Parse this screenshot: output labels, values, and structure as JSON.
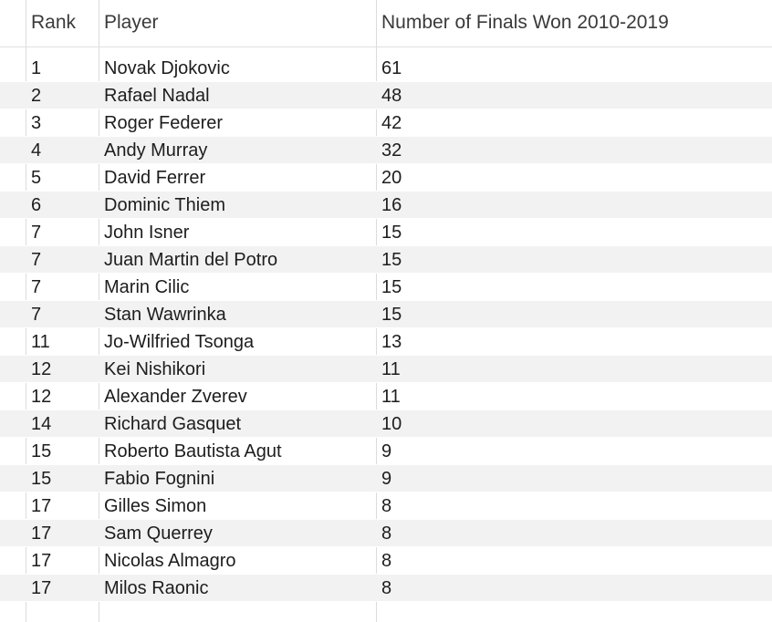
{
  "columns": {
    "rank": "Rank",
    "player": "Player",
    "finals": "Number of Finals Won 2010-2019"
  },
  "rows": [
    {
      "rank": "1",
      "player": "Novak Djokovic",
      "finals": "61"
    },
    {
      "rank": "2",
      "player": "Rafael Nadal",
      "finals": "48"
    },
    {
      "rank": "3",
      "player": "Roger Federer",
      "finals": "42"
    },
    {
      "rank": "4",
      "player": "Andy Murray",
      "finals": "32"
    },
    {
      "rank": "5",
      "player": "David Ferrer",
      "finals": "20"
    },
    {
      "rank": "6",
      "player": "Dominic Thiem",
      "finals": "16"
    },
    {
      "rank": "7",
      "player": "John Isner",
      "finals": "15"
    },
    {
      "rank": "7",
      "player": "Juan Martin del Potro",
      "finals": "15"
    },
    {
      "rank": "7",
      "player": "Marin Cilic",
      "finals": "15"
    },
    {
      "rank": "7",
      "player": "Stan Wawrinka",
      "finals": "15"
    },
    {
      "rank": "11",
      "player": "Jo-Wilfried Tsonga",
      "finals": "13"
    },
    {
      "rank": "12",
      "player": "Kei Nishikori",
      "finals": "11"
    },
    {
      "rank": "12",
      "player": "Alexander Zverev",
      "finals": "11"
    },
    {
      "rank": "14",
      "player": "Richard Gasquet",
      "finals": "10"
    },
    {
      "rank": "15",
      "player": "Roberto Bautista Agut",
      "finals": "9"
    },
    {
      "rank": "15",
      "player": "Fabio Fognini",
      "finals": "9"
    },
    {
      "rank": "17",
      "player": "Gilles Simon",
      "finals": "8"
    },
    {
      "rank": "17",
      "player": "Sam Querrey",
      "finals": "8"
    },
    {
      "rank": "17",
      "player": "Nicolas Almagro",
      "finals": "8"
    },
    {
      "rank": "17",
      "player": "Milos Raonic",
      "finals": "8"
    }
  ]
}
